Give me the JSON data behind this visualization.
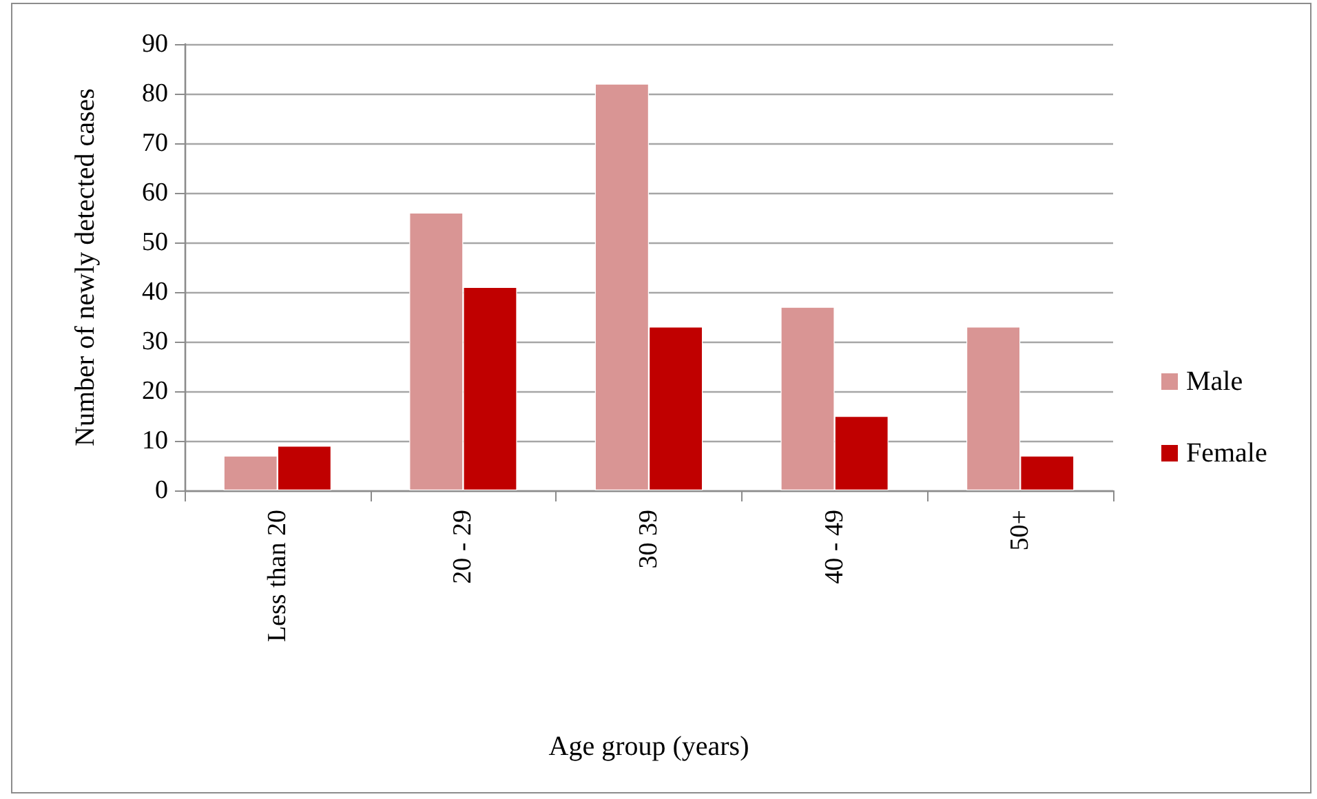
{
  "chart_data": {
    "type": "bar",
    "xlabel": "Age group (years)",
    "ylabel": "Number of newly detected cases",
    "categories": [
      "Less than 20",
      "20 - 29",
      "30 39",
      "40 - 49",
      "50+"
    ],
    "series": [
      {
        "name": "Male",
        "color": "#d99594",
        "values": [
          7,
          56,
          82,
          37,
          33
        ]
      },
      {
        "name": "Female",
        "color": "#c00000",
        "values": [
          9,
          41,
          33,
          15,
          7
        ]
      }
    ],
    "ylim": [
      0,
      90
    ],
    "yticks": [
      0,
      10,
      20,
      30,
      40,
      50,
      60,
      70,
      80,
      90
    ],
    "grid": "y",
    "legend": "right"
  }
}
